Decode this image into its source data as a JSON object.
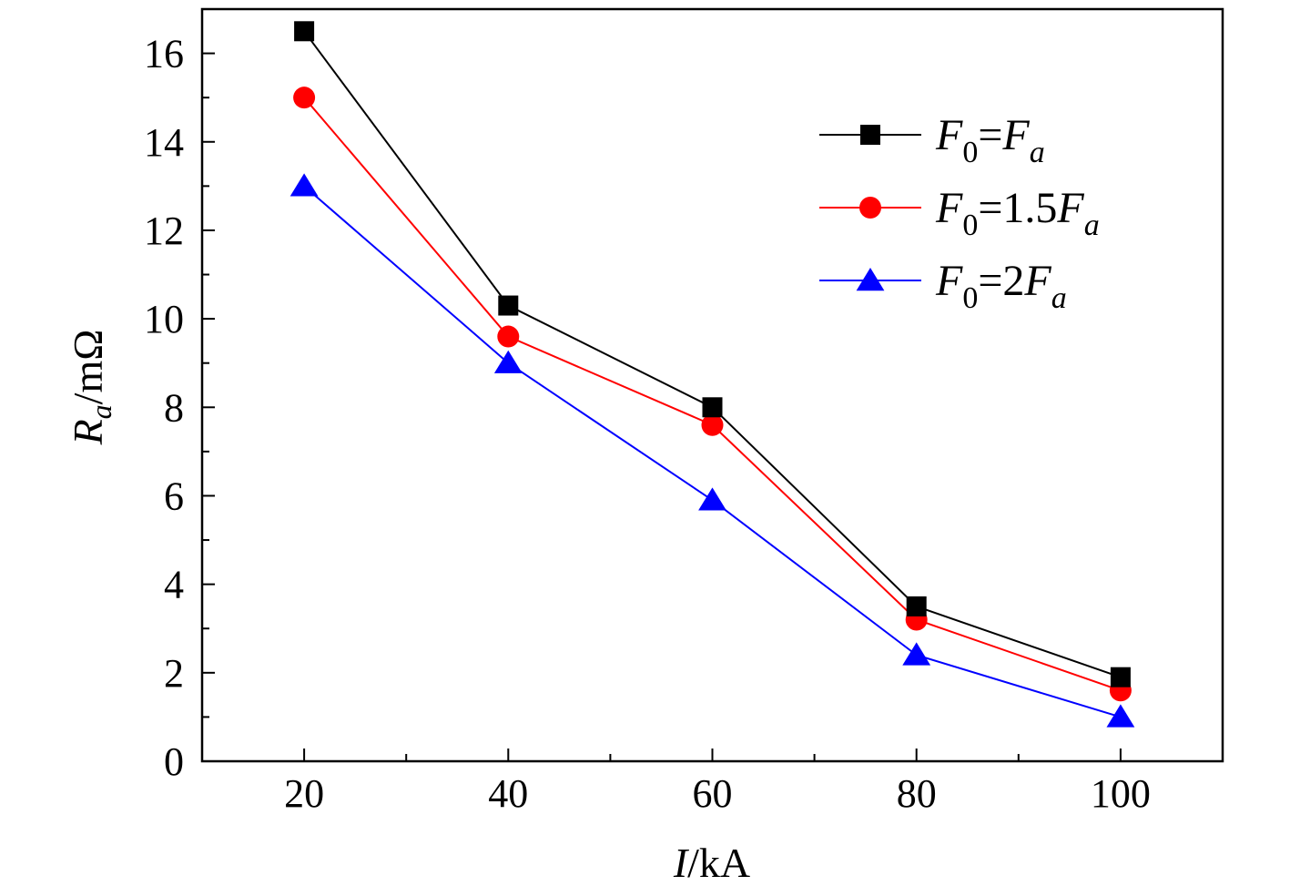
{
  "chart_data": {
    "type": "line",
    "x": [
      20,
      40,
      60,
      80,
      100
    ],
    "xlim": [
      10,
      110
    ],
    "ylim": [
      0,
      17
    ],
    "xticks": [
      20,
      40,
      60,
      80,
      100
    ],
    "yticks": [
      0,
      2,
      4,
      6,
      8,
      10,
      12,
      14,
      16
    ],
    "xlabel": {
      "italic": "I",
      "rest": "/kA"
    },
    "ylabel": {
      "main": "R",
      "sub": "a",
      "rest": "/mΩ"
    },
    "grid": false,
    "legend_position": "top-right",
    "series": [
      {
        "name": "F0=Fa",
        "label": {
          "a": "F",
          "a_sub": "0",
          "b": "=F",
          "b_sub": "a"
        },
        "values": [
          16.5,
          10.3,
          8.0,
          3.5,
          1.9
        ],
        "color": "#000000",
        "marker": "square"
      },
      {
        "name": "F0=1.5Fa",
        "label": {
          "a": "F",
          "a_sub": "0",
          "b": "=1.5F",
          "b_sub": "a"
        },
        "values": [
          15.0,
          9.6,
          7.6,
          3.2,
          1.6
        ],
        "color": "#ff0000",
        "marker": "circle"
      },
      {
        "name": "F0=2Fa",
        "label": {
          "a": "F",
          "a_sub": "0",
          "b": "=2F",
          "b_sub": "a"
        },
        "values": [
          13.0,
          9.0,
          5.9,
          2.4,
          1.0
        ],
        "color": "#0000ff",
        "marker": "triangle"
      }
    ]
  }
}
